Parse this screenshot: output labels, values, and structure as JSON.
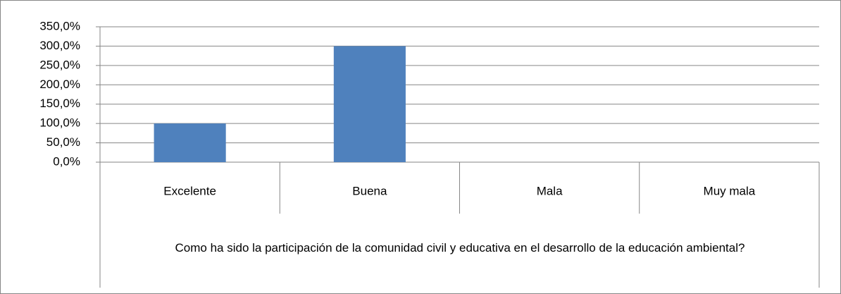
{
  "chart_data": {
    "type": "bar",
    "categories": [
      "Excelente",
      "Buena",
      "Mala",
      "Muy mala"
    ],
    "values": [
      100,
      300,
      0,
      0
    ],
    "color": "#4f81bd",
    "x_label": "Como ha sido la participación de la comunidad civil y educativa en el desarrollo de la educación ambiental?",
    "ylim": [
      0,
      350
    ],
    "yticks": [
      {
        "value": 0,
        "label": "0,0%"
      },
      {
        "value": 50,
        "label": "50,0%"
      },
      {
        "value": 100,
        "label": "100,0%"
      },
      {
        "value": 150,
        "label": "150,0%"
      },
      {
        "value": 200,
        "label": "200,0%"
      },
      {
        "value": 250,
        "label": "250,0%"
      },
      {
        "value": 300,
        "label": "300,0%"
      },
      {
        "value": 350,
        "label": "350,0%"
      }
    ],
    "grid": true
  }
}
